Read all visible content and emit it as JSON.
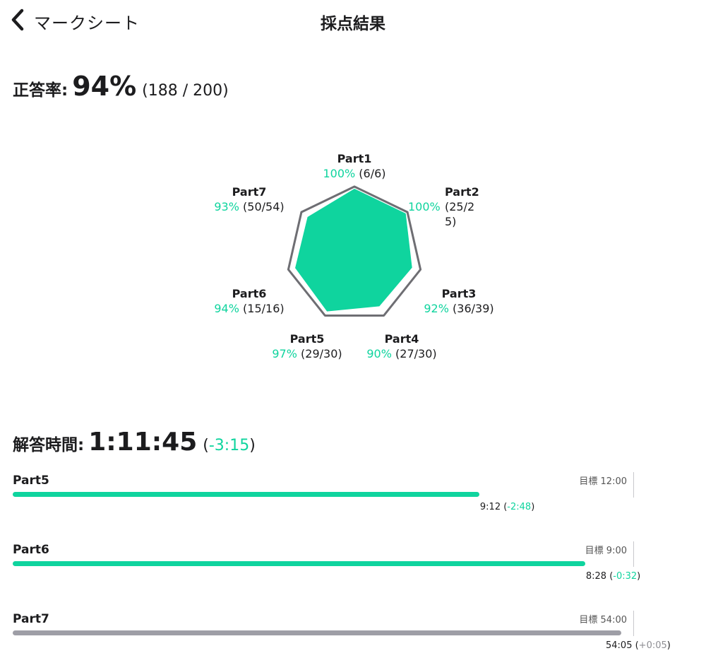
{
  "nav": {
    "back_label": "マークシート",
    "title": "採点結果"
  },
  "score": {
    "label": "正答率:",
    "value": "94%",
    "fraction": "(188 / 200)"
  },
  "radar": {
    "parts": [
      {
        "name": "Part1",
        "pct": "100%",
        "count": "(6/6)",
        "value": 100
      },
      {
        "name": "Part2",
        "pct": "100%",
        "count": "(25/25)",
        "value": 100
      },
      {
        "name": "Part3",
        "pct": "92%",
        "count": "(36/39)",
        "value": 92
      },
      {
        "name": "Part4",
        "pct": "90%",
        "count": "(27/30)",
        "value": 90
      },
      {
        "name": "Part5",
        "pct": "97%",
        "count": "(29/30)",
        "value": 97
      },
      {
        "name": "Part6",
        "pct": "94%",
        "count": "(15/16)",
        "value": 94
      },
      {
        "name": "Part7",
        "pct": "93%",
        "count": "(50/54)",
        "value": 93
      }
    ],
    "fill_color": "#0fd49e",
    "outline_color": "#6e6e73"
  },
  "time": {
    "label": "解答時間:",
    "value": "1:11:45",
    "diff_open": "(",
    "diff": "-3:15",
    "diff_close": ")"
  },
  "sections": [
    {
      "name": "Part5",
      "goal": "目標 12:00",
      "result": "9:12",
      "diff": "-2:48",
      "ratio": 0.7667,
      "color": "#0fd49e",
      "diff_color": "green"
    },
    {
      "name": "Part6",
      "goal": "目標 9:00",
      "result": "8:28",
      "diff": "-0:32",
      "ratio": 0.9407,
      "color": "#0fd49e",
      "diff_color": "green"
    },
    {
      "name": "Part7",
      "goal": "目標 54:00",
      "result": "54:05",
      "diff": "+0:05",
      "ratio": 1.0015,
      "color": "#9e9ea6",
      "diff_color": "gray"
    }
  ]
}
